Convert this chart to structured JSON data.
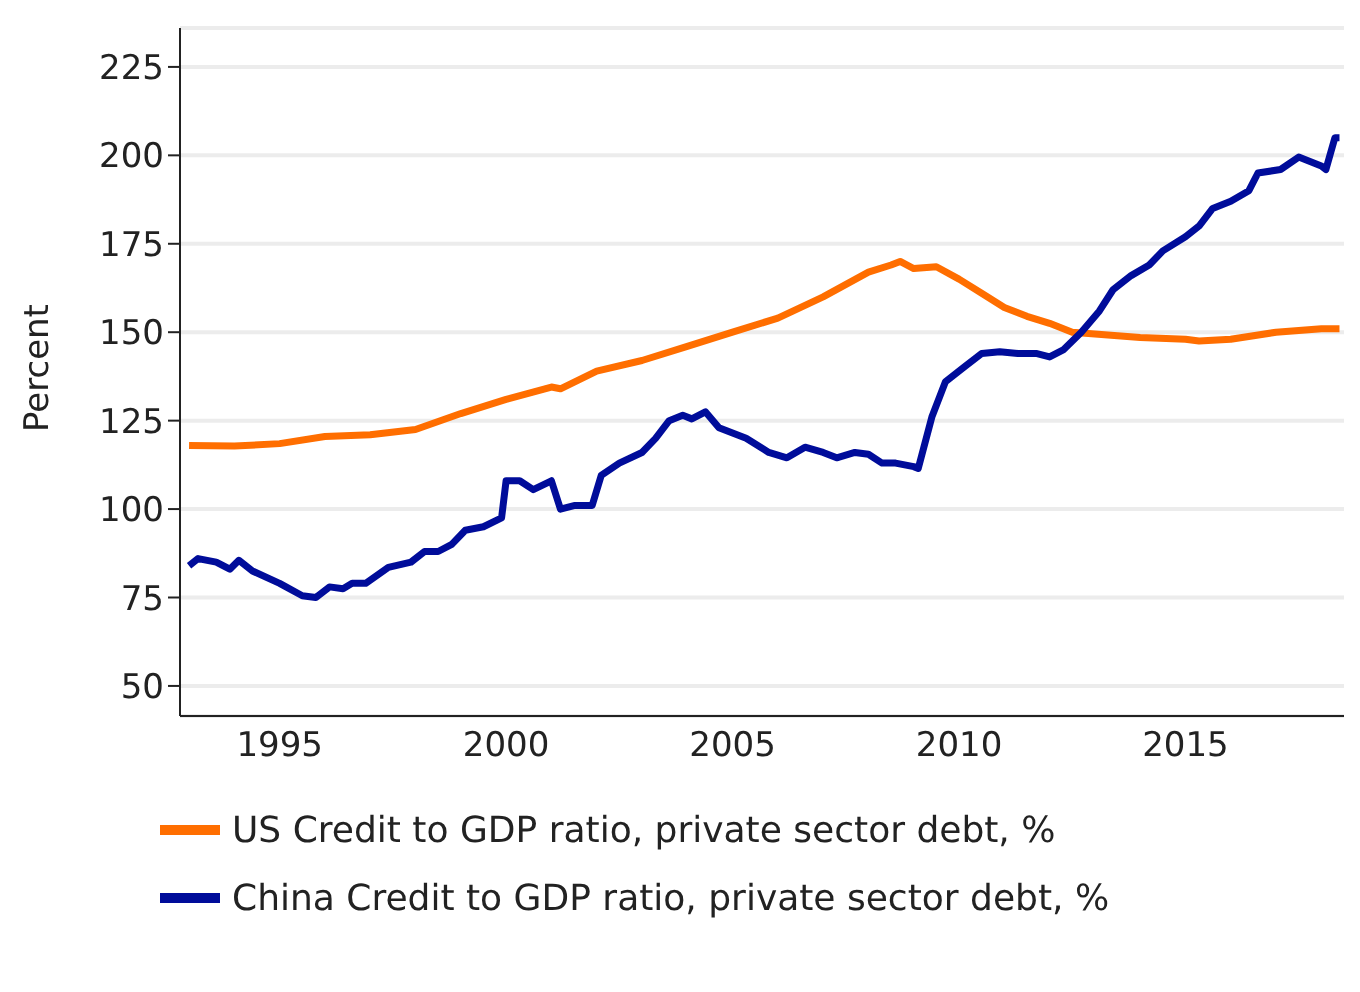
{
  "chart_data": {
    "type": "line",
    "ylabel": "Percent",
    "xlim": [
      1992.8,
      2018.5
    ],
    "xticks": [
      1995,
      2000,
      2005,
      2010,
      2015
    ],
    "ylim": [
      41.5,
      236
    ],
    "yticks": [
      50,
      75,
      100,
      125,
      150,
      175,
      200,
      225
    ],
    "grid": "y",
    "legend": "bottom",
    "marker": "none",
    "line_style": "solid",
    "series": [
      {
        "name": "US Credit to GDP ratio, private sector debt, %",
        "color": "#ff6e00",
        "x": [
          1993.0,
          1994,
          1995,
          1996,
          1997,
          1998,
          1999,
          2000,
          2001,
          2001.2,
          2002,
          2003,
          2004,
          2005,
          2006,
          2007,
          2008,
          2008.5,
          2008.7,
          2009,
          2009.5,
          2010,
          2010.5,
          2011,
          2011.5,
          2012,
          2012.5,
          2013,
          2014,
          2015,
          2015.3,
          2016,
          2017,
          2018,
          2018.4
        ],
        "values": [
          118,
          117.8,
          118.5,
          120.5,
          121,
          122.5,
          127,
          131,
          134.5,
          134,
          139,
          142,
          146,
          150,
          154,
          160,
          167,
          169,
          170,
          168,
          168.5,
          165,
          161,
          157,
          154.5,
          152.5,
          150,
          149.5,
          148.5,
          148,
          147.5,
          148,
          150,
          151,
          151
        ]
      },
      {
        "name": "China Credit to GDP ratio, private sector debt, %",
        "color": "#000c9a",
        "x": [
          1993.0,
          1993.2,
          1993.6,
          1993.9,
          1994.1,
          1994.4,
          1995,
          1995.5,
          1995.8,
          1996.1,
          1996.4,
          1996.6,
          1996.9,
          1997.4,
          1997.9,
          1998.2,
          1998.5,
          1998.8,
          1999.1,
          1999.5,
          1999.9,
          2000.0,
          2000.3,
          2000.6,
          2001,
          2001.2,
          2001.5,
          2001.9,
          2002.1,
          2002.5,
          2003,
          2003.3,
          2003.6,
          2003.9,
          2004.1,
          2004.4,
          2004.7,
          2005.3,
          2005.8,
          2006.2,
          2006.6,
          2007,
          2007.3,
          2007.7,
          2008,
          2008.3,
          2008.6,
          2009,
          2009.1,
          2009.4,
          2009.7,
          2010.1,
          2010.5,
          2010.9,
          2011.3,
          2011.7,
          2012,
          2012.3,
          2012.7,
          2013.1,
          2013.4,
          2013.8,
          2014.2,
          2014.5,
          2015,
          2015.3,
          2015.6,
          2016,
          2016.4,
          2016.6,
          2017.1,
          2017.5,
          2018,
          2018.1,
          2018.3,
          2018.4
        ],
        "values": [
          84,
          86,
          85,
          83,
          85.5,
          82.5,
          79,
          75.5,
          75,
          78,
          77.5,
          79,
          79,
          83.5,
          85,
          88,
          88,
          90,
          94,
          95,
          97.5,
          108,
          108,
          105.5,
          108,
          100,
          101,
          101,
          109.5,
          113,
          116,
          120,
          125,
          126.5,
          125.5,
          127.5,
          123,
          120,
          116,
          114.5,
          117.5,
          116,
          114.5,
          116,
          115.5,
          113,
          113,
          112,
          111.5,
          126,
          136,
          140,
          144,
          144.5,
          144,
          144,
          143,
          145,
          150,
          156,
          162,
          166,
          169,
          173,
          177,
          180,
          185,
          187,
          190,
          195,
          196,
          199.5,
          197,
          196,
          205,
          205
        ]
      }
    ]
  }
}
